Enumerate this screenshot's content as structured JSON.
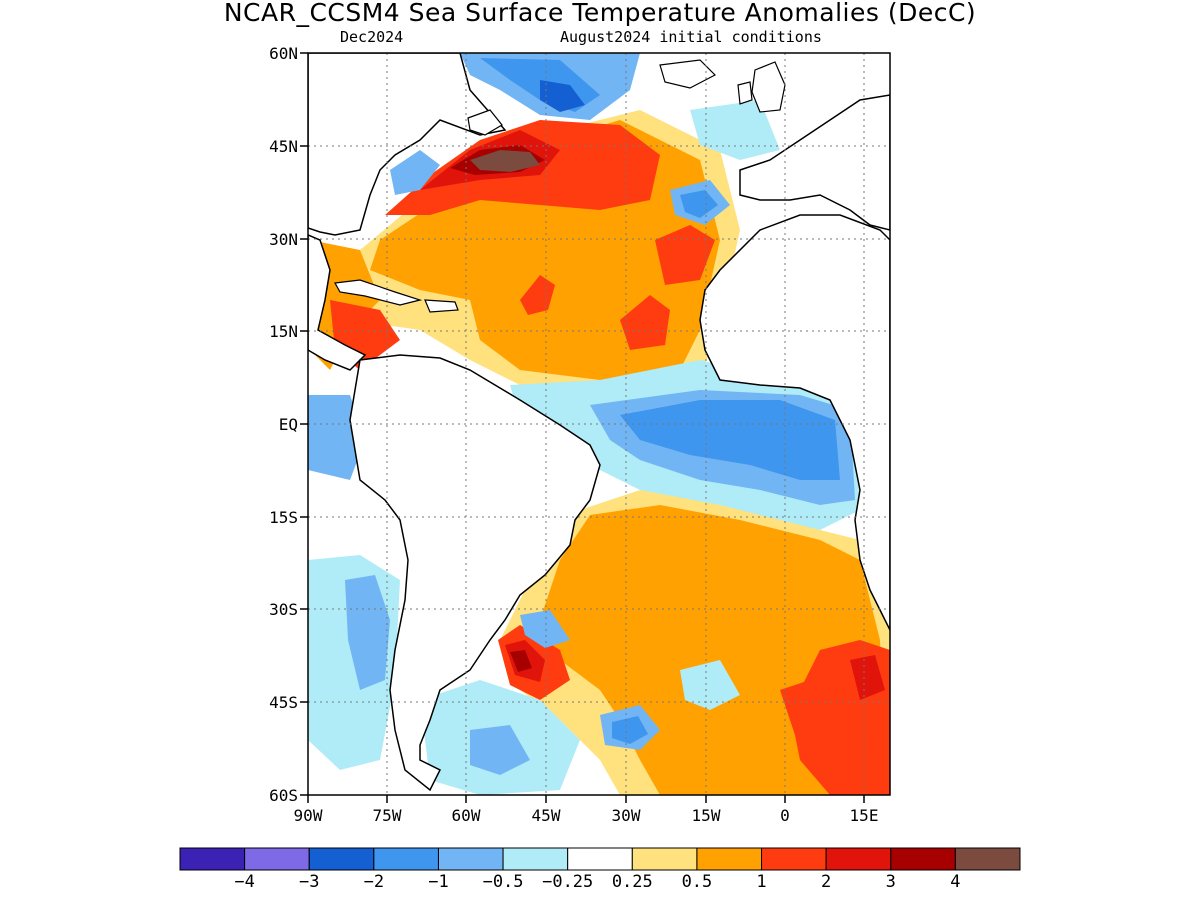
{
  "title": "NCAR_CCSM4 Sea Surface Temperature Anomalies (DecC)",
  "subtitle_left": "Dec2024",
  "subtitle_right": "August2024 initial conditions",
  "lat_labels": [
    "60N",
    "45N",
    "30N",
    "15N",
    "EQ",
    "15S",
    "30S",
    "45S",
    "60S"
  ],
  "lon_labels": [
    "90W",
    "75W",
    "60W",
    "45W",
    "30W",
    "15W",
    "0",
    "15E"
  ],
  "colorbar": {
    "colors": [
      "#3b22b5",
      "#7e6ae6",
      "#1460d2",
      "#3f96ee",
      "#72b5f4",
      "#b0ecf7",
      "#ffffff",
      "#ffe17e",
      "#ffa100",
      "#ff3b10",
      "#e1140c",
      "#a70000",
      "#7a4b3e"
    ],
    "labels": [
      "-4",
      "-3",
      "-2",
      "-1",
      "-0.5",
      "-0.25",
      "0.25",
      "0.5",
      "1",
      "2",
      "3",
      "4"
    ]
  }
}
